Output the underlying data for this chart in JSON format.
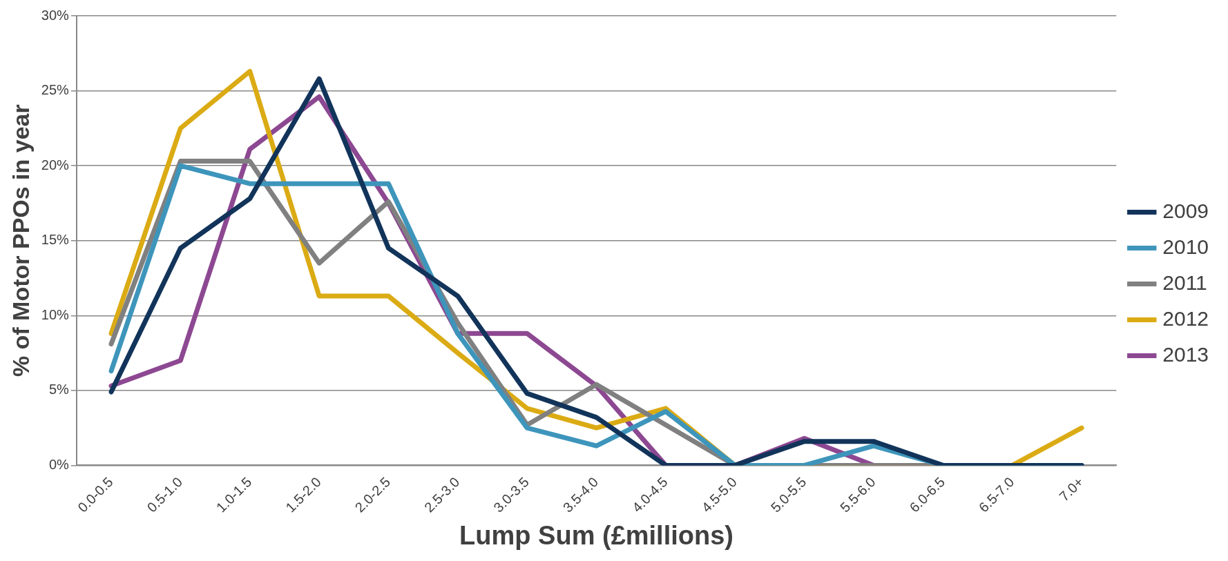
{
  "chart_data": {
    "type": "line",
    "xlabel": "Lump Sum (£millions)",
    "ylabel": "% of Motor PPOs in year",
    "categories": [
      "0.0-0.5",
      "0.5-1.0",
      "1.0-1.5",
      "1.5-2.0",
      "2.0-2.5",
      "2.5-3.0",
      "3.0-3.5",
      "3.5-4.0",
      "4.0-4.5",
      "4.5-5.0",
      "5.0-5.5",
      "5.5-6.0",
      "6.0-6.5",
      "6.5-7.0",
      "7.0+"
    ],
    "series": [
      {
        "name": "2009",
        "color": "#12345a",
        "values": [
          4.9,
          14.5,
          17.8,
          25.8,
          14.5,
          11.3,
          4.8,
          3.2,
          0,
          0,
          1.6,
          1.6,
          0,
          0,
          0
        ]
      },
      {
        "name": "2010",
        "color": "#3e95bb",
        "values": [
          6.3,
          20.0,
          18.8,
          18.8,
          18.8,
          8.8,
          2.5,
          1.3,
          3.6,
          0,
          0,
          1.3,
          0,
          0,
          0
        ]
      },
      {
        "name": "2011",
        "color": "#808080",
        "values": [
          8.1,
          20.3,
          20.3,
          13.5,
          17.6,
          9.5,
          2.7,
          5.4,
          2.7,
          0,
          0,
          0,
          0,
          0,
          0
        ]
      },
      {
        "name": "2012",
        "color": "#dbab14",
        "values": [
          8.8,
          22.5,
          26.3,
          11.3,
          11.3,
          7.5,
          3.8,
          2.5,
          3.8,
          0,
          0,
          0,
          0,
          0,
          2.5
        ]
      },
      {
        "name": "2013",
        "color": "#8d4892",
        "values": [
          5.3,
          7.0,
          21.1,
          24.6,
          17.5,
          8.8,
          8.8,
          5.3,
          0,
          0,
          1.8,
          0,
          0,
          0,
          0
        ]
      }
    ],
    "ylim": [
      0,
      30
    ],
    "yticks": [
      {
        "value": 0,
        "label": "0%"
      },
      {
        "value": 5,
        "label": "5%"
      },
      {
        "value": 10,
        "label": "10%"
      },
      {
        "value": 15,
        "label": "15%"
      },
      {
        "value": 20,
        "label": "20%"
      },
      {
        "value": 25,
        "label": "25%"
      },
      {
        "value": 30,
        "label": "30%"
      }
    ],
    "grid": "y",
    "legend": "right",
    "marker": "none",
    "line_style": "solid"
  }
}
